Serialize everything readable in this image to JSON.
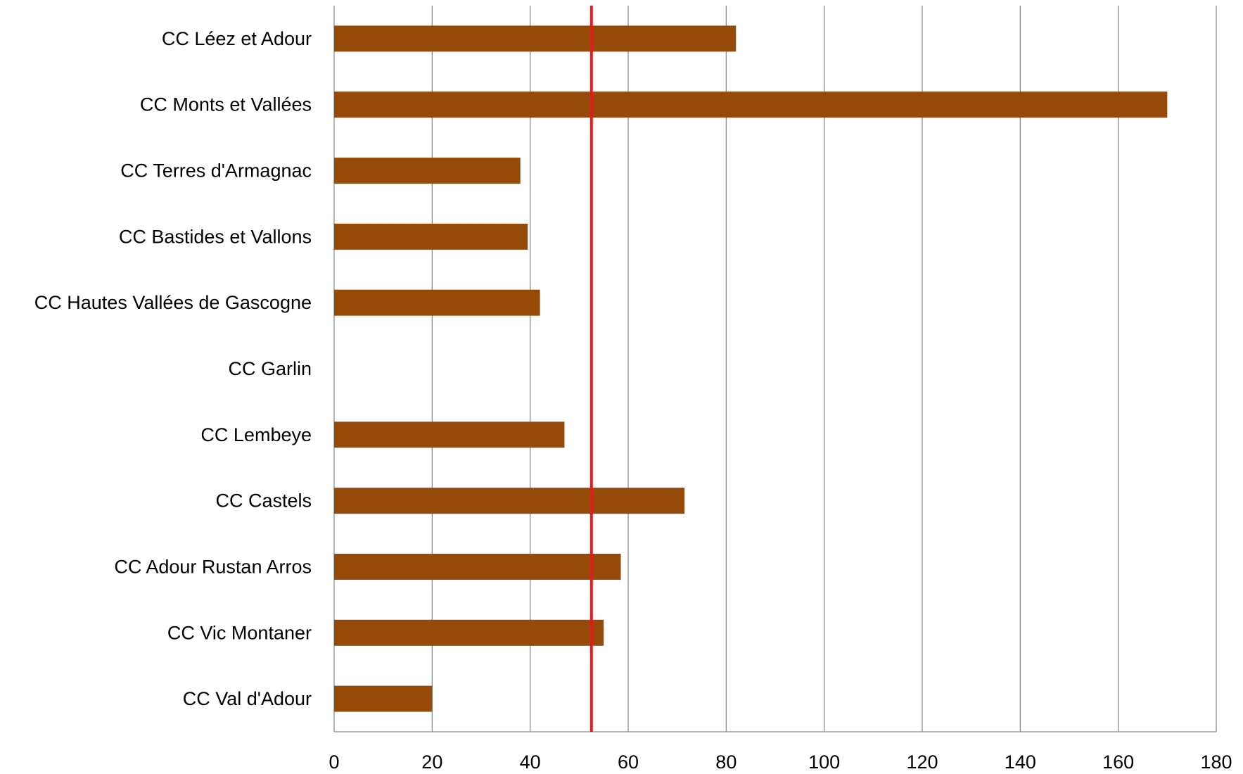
{
  "chart_data": {
    "type": "bar",
    "orientation": "horizontal",
    "categories": [
      "CC Léez et Adour",
      "CC Monts et Vallées",
      "CC Terres d'Armagnac",
      "CC Bastides et Vallons",
      "CC Hautes Vallées de Gascogne",
      "CC Garlin",
      "CC Lembeye",
      "CC Castels",
      "CC Adour Rustan Arros",
      "CC Vic Montaner",
      "CC Val d'Adour"
    ],
    "values": [
      82,
      170,
      38,
      39.5,
      42,
      0,
      47,
      71.5,
      58.5,
      55,
      20
    ],
    "xlim": [
      0,
      180
    ],
    "xticks": [
      "0",
      "20",
      "40",
      "60",
      "80",
      "100",
      "120",
      "140",
      "160",
      "180"
    ],
    "reference_line": {
      "value": 52.5,
      "color": "#e8191c"
    },
    "bar_color": "#964a0a",
    "grid": true,
    "title": "",
    "xlabel": "",
    "ylabel": ""
  }
}
